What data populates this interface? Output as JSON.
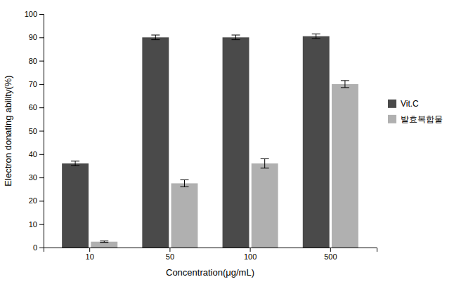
{
  "chart_data": {
    "type": "bar",
    "categories": [
      "10",
      "50",
      "100",
      "500"
    ],
    "series": [
      {
        "name": "Vit.C",
        "color": "#4a4a4a",
        "values": [
          36,
          90,
          90,
          90.5
        ],
        "errors": [
          1.0,
          1.0,
          1.0,
          1.0
        ]
      },
      {
        "name": "발효복합물",
        "color": "#b0b0b0",
        "values": [
          2.5,
          27.5,
          36,
          70
        ],
        "errors": [
          0.3,
          1.5,
          2.0,
          1.5
        ]
      }
    ],
    "xlabel": "Concentration(μg/mL)",
    "ylabel": "Electron donating ability(%)",
    "ylim": [
      0,
      100
    ],
    "yticks": [
      0,
      10,
      20,
      30,
      40,
      50,
      60,
      70,
      80,
      90,
      100
    ],
    "grid": false,
    "legend": "right"
  }
}
